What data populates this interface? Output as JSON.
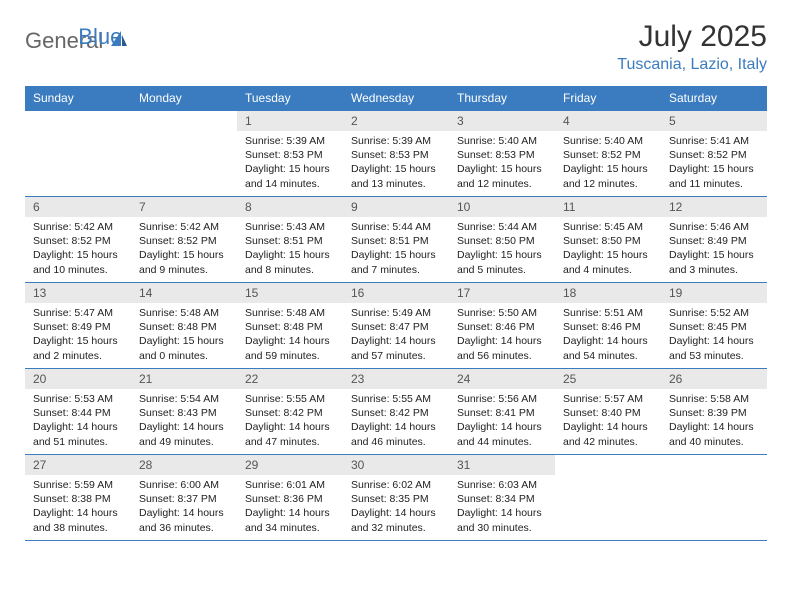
{
  "logo": {
    "text1": "General",
    "text2": "Blue"
  },
  "header": {
    "title": "July 2025",
    "location": "Tuscania, Lazio, Italy"
  },
  "colors": {
    "brand_blue": "#3b7bbf",
    "header_text": "#ffffff",
    "daynum_bg": "#e9e9e9",
    "daynum_text": "#555555",
    "body_text": "#222222",
    "logo_gray": "#666666",
    "bg": "#ffffff"
  },
  "days_of_week": [
    "Sunday",
    "Monday",
    "Tuesday",
    "Wednesday",
    "Thursday",
    "Friday",
    "Saturday"
  ],
  "weeks": [
    [
      null,
      null,
      {
        "n": "1",
        "sr": "5:39 AM",
        "ss": "8:53 PM",
        "dl": "15 hours and 14 minutes."
      },
      {
        "n": "2",
        "sr": "5:39 AM",
        "ss": "8:53 PM",
        "dl": "15 hours and 13 minutes."
      },
      {
        "n": "3",
        "sr": "5:40 AM",
        "ss": "8:53 PM",
        "dl": "15 hours and 12 minutes."
      },
      {
        "n": "4",
        "sr": "5:40 AM",
        "ss": "8:52 PM",
        "dl": "15 hours and 12 minutes."
      },
      {
        "n": "5",
        "sr": "5:41 AM",
        "ss": "8:52 PM",
        "dl": "15 hours and 11 minutes."
      }
    ],
    [
      {
        "n": "6",
        "sr": "5:42 AM",
        "ss": "8:52 PM",
        "dl": "15 hours and 10 minutes."
      },
      {
        "n": "7",
        "sr": "5:42 AM",
        "ss": "8:52 PM",
        "dl": "15 hours and 9 minutes."
      },
      {
        "n": "8",
        "sr": "5:43 AM",
        "ss": "8:51 PM",
        "dl": "15 hours and 8 minutes."
      },
      {
        "n": "9",
        "sr": "5:44 AM",
        "ss": "8:51 PM",
        "dl": "15 hours and 7 minutes."
      },
      {
        "n": "10",
        "sr": "5:44 AM",
        "ss": "8:50 PM",
        "dl": "15 hours and 5 minutes."
      },
      {
        "n": "11",
        "sr": "5:45 AM",
        "ss": "8:50 PM",
        "dl": "15 hours and 4 minutes."
      },
      {
        "n": "12",
        "sr": "5:46 AM",
        "ss": "8:49 PM",
        "dl": "15 hours and 3 minutes."
      }
    ],
    [
      {
        "n": "13",
        "sr": "5:47 AM",
        "ss": "8:49 PM",
        "dl": "15 hours and 2 minutes."
      },
      {
        "n": "14",
        "sr": "5:48 AM",
        "ss": "8:48 PM",
        "dl": "15 hours and 0 minutes."
      },
      {
        "n": "15",
        "sr": "5:48 AM",
        "ss": "8:48 PM",
        "dl": "14 hours and 59 minutes."
      },
      {
        "n": "16",
        "sr": "5:49 AM",
        "ss": "8:47 PM",
        "dl": "14 hours and 57 minutes."
      },
      {
        "n": "17",
        "sr": "5:50 AM",
        "ss": "8:46 PM",
        "dl": "14 hours and 56 minutes."
      },
      {
        "n": "18",
        "sr": "5:51 AM",
        "ss": "8:46 PM",
        "dl": "14 hours and 54 minutes."
      },
      {
        "n": "19",
        "sr": "5:52 AM",
        "ss": "8:45 PM",
        "dl": "14 hours and 53 minutes."
      }
    ],
    [
      {
        "n": "20",
        "sr": "5:53 AM",
        "ss": "8:44 PM",
        "dl": "14 hours and 51 minutes."
      },
      {
        "n": "21",
        "sr": "5:54 AM",
        "ss": "8:43 PM",
        "dl": "14 hours and 49 minutes."
      },
      {
        "n": "22",
        "sr": "5:55 AM",
        "ss": "8:42 PM",
        "dl": "14 hours and 47 minutes."
      },
      {
        "n": "23",
        "sr": "5:55 AM",
        "ss": "8:42 PM",
        "dl": "14 hours and 46 minutes."
      },
      {
        "n": "24",
        "sr": "5:56 AM",
        "ss": "8:41 PM",
        "dl": "14 hours and 44 minutes."
      },
      {
        "n": "25",
        "sr": "5:57 AM",
        "ss": "8:40 PM",
        "dl": "14 hours and 42 minutes."
      },
      {
        "n": "26",
        "sr": "5:58 AM",
        "ss": "8:39 PM",
        "dl": "14 hours and 40 minutes."
      }
    ],
    [
      {
        "n": "27",
        "sr": "5:59 AM",
        "ss": "8:38 PM",
        "dl": "14 hours and 38 minutes."
      },
      {
        "n": "28",
        "sr": "6:00 AM",
        "ss": "8:37 PM",
        "dl": "14 hours and 36 minutes."
      },
      {
        "n": "29",
        "sr": "6:01 AM",
        "ss": "8:36 PM",
        "dl": "14 hours and 34 minutes."
      },
      {
        "n": "30",
        "sr": "6:02 AM",
        "ss": "8:35 PM",
        "dl": "14 hours and 32 minutes."
      },
      {
        "n": "31",
        "sr": "6:03 AM",
        "ss": "8:34 PM",
        "dl": "14 hours and 30 minutes."
      },
      null,
      null
    ]
  ],
  "labels": {
    "sunrise": "Sunrise:",
    "sunset": "Sunset:",
    "daylight": "Daylight:"
  }
}
